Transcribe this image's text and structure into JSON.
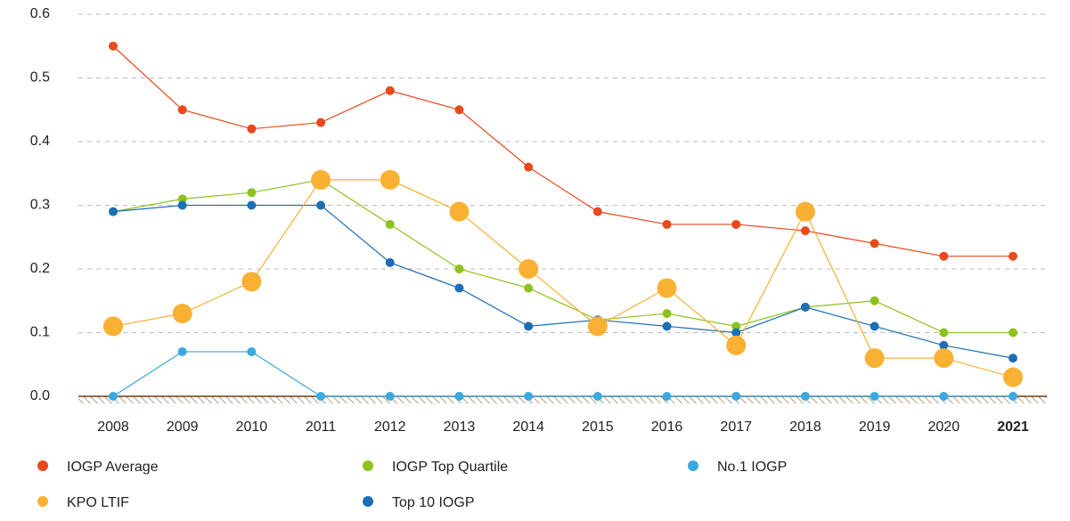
{
  "chart_data": {
    "type": "line",
    "categories": [
      "2008",
      "2009",
      "2010",
      "2011",
      "2012",
      "2013",
      "2014",
      "2015",
      "2016",
      "2017",
      "2018",
      "2019",
      "2020",
      "2021"
    ],
    "bold_last_category": true,
    "series": [
      {
        "name": "IOGP Average",
        "color": "#e8491d",
        "values": [
          0.55,
          0.45,
          0.42,
          0.43,
          0.48,
          0.45,
          0.36,
          0.29,
          0.27,
          0.27,
          0.26,
          0.24,
          0.22,
          0.22
        ]
      },
      {
        "name": "IOGP Top Quartile",
        "color": "#8dc21f",
        "values": [
          0.29,
          0.31,
          0.32,
          0.34,
          0.27,
          0.2,
          0.17,
          0.12,
          0.13,
          0.11,
          0.14,
          0.15,
          0.1,
          0.1
        ]
      },
      {
        "name": "No.1 IOGP",
        "color": "#3ba9e0",
        "values": [
          0,
          0.07,
          0.07,
          0,
          0,
          0,
          0,
          0,
          0,
          0,
          0,
          0,
          0,
          0
        ]
      },
      {
        "name": "KPO LTIF",
        "color": "#f8b133",
        "highlight": true,
        "values": [
          0.11,
          0.13,
          0.18,
          0.34,
          0.34,
          0.29,
          0.2,
          0.11,
          0.17,
          0.08,
          0.29,
          0.06,
          0.06,
          0.03
        ]
      },
      {
        "name": "Top 10 IOGP",
        "color": "#1c6fb5",
        "values": [
          0.29,
          0.3,
          0.3,
          0.3,
          0.21,
          0.17,
          0.11,
          0.12,
          0.11,
          0.1,
          0.14,
          0.11,
          0.08,
          0.06
        ]
      }
    ],
    "ylim": [
      0,
      0.6
    ],
    "yticks": [
      {
        "value": 0,
        "label": "0.0"
      },
      0.1,
      0.2,
      0.3,
      0.4,
      0.5,
      0.6
    ],
    "grid": true
  }
}
